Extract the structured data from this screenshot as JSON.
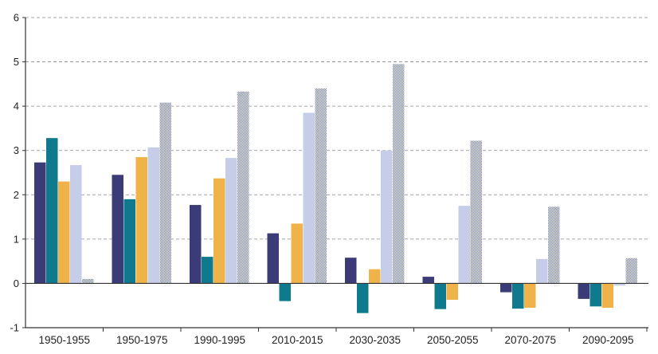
{
  "chart_data": {
    "type": "bar",
    "categories": [
      "1950-1955",
      "1950-1975",
      "1990-1995",
      "2010-2015",
      "2030-2035",
      "2050-2055",
      "2070-2075",
      "2090-2095"
    ],
    "series": [
      {
        "color": "#3b3b78",
        "pattern": "solid",
        "values": [
          2.73,
          2.45,
          1.77,
          1.13,
          0.58,
          0.15,
          -0.2,
          -0.35
        ]
      },
      {
        "color": "#0f7a8e",
        "pattern": "solid",
        "values": [
          3.28,
          1.9,
          0.6,
          -0.4,
          -0.67,
          -0.58,
          -0.57,
          -0.52
        ]
      },
      {
        "color": "#f0b34a",
        "pattern": "solid",
        "values": [
          2.3,
          2.85,
          2.37,
          1.35,
          0.32,
          -0.37,
          -0.55,
          -0.55
        ]
      },
      {
        "color": "#c5cde8",
        "pattern": "solid",
        "values": [
          2.67,
          3.07,
          2.83,
          3.85,
          3.0,
          1.75,
          0.55,
          -0.05
        ]
      },
      {
        "color": "#6e78ad",
        "pattern": "dotted",
        "values": [
          0.1,
          4.08,
          4.33,
          4.4,
          4.95,
          3.22,
          1.73,
          0.57
        ]
      }
    ],
    "ylim": [
      -1,
      6
    ],
    "yticks": [
      "-1",
      "0",
      "1",
      "2",
      "3",
      "4",
      "5",
      "6"
    ],
    "grid": "horizontal-dashed",
    "title": "",
    "xlabel": "",
    "ylabel": ""
  }
}
